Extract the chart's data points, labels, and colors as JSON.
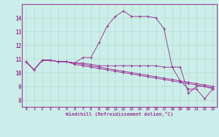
{
  "xlabel": "Windchill (Refroidissement éolien,°C)",
  "background_color": "#cceee8",
  "line_color": "#993399",
  "hours": [
    0,
    1,
    2,
    3,
    4,
    5,
    6,
    7,
    8,
    9,
    10,
    11,
    12,
    13,
    14,
    15,
    16,
    17,
    18,
    19,
    20,
    21,
    22,
    23
  ],
  "series": [
    [
      10.8,
      10.2,
      10.9,
      10.9,
      10.8,
      10.8,
      10.7,
      11.1,
      11.1,
      12.2,
      13.4,
      14.1,
      14.5,
      14.1,
      14.1,
      14.1,
      14.0,
      13.2,
      10.4,
      10.4,
      8.5,
      9.0,
      9.0,
      8.8
    ],
    [
      10.8,
      10.2,
      10.9,
      10.9,
      10.8,
      10.8,
      10.7,
      10.7,
      10.6,
      10.5,
      10.5,
      10.5,
      10.5,
      10.5,
      10.5,
      10.5,
      10.5,
      10.4,
      10.4,
      9.4,
      8.8,
      8.8,
      8.1,
      8.8
    ],
    [
      10.8,
      10.2,
      10.9,
      10.9,
      10.8,
      10.8,
      10.6,
      10.5,
      10.4,
      10.3,
      10.2,
      10.1,
      10.0,
      9.9,
      9.8,
      9.7,
      9.6,
      9.5,
      9.4,
      9.3,
      9.2,
      9.1,
      9.0,
      8.9
    ],
    [
      10.8,
      10.2,
      10.9,
      10.9,
      10.8,
      10.8,
      10.7,
      10.6,
      10.5,
      10.4,
      10.3,
      10.2,
      10.1,
      10.0,
      9.9,
      9.8,
      9.7,
      9.6,
      9.5,
      9.4,
      9.3,
      9.2,
      9.1,
      9.0
    ]
  ],
  "ylim": [
    7.5,
    15.0
  ],
  "yticks": [
    8,
    9,
    10,
    11,
    12,
    13,
    14
  ],
  "xticks": [
    0,
    1,
    2,
    3,
    4,
    5,
    6,
    7,
    8,
    9,
    10,
    11,
    12,
    13,
    14,
    15,
    16,
    17,
    18,
    19,
    20,
    21,
    22,
    23
  ],
  "grid_color": "#aaddcc",
  "marker": "+"
}
